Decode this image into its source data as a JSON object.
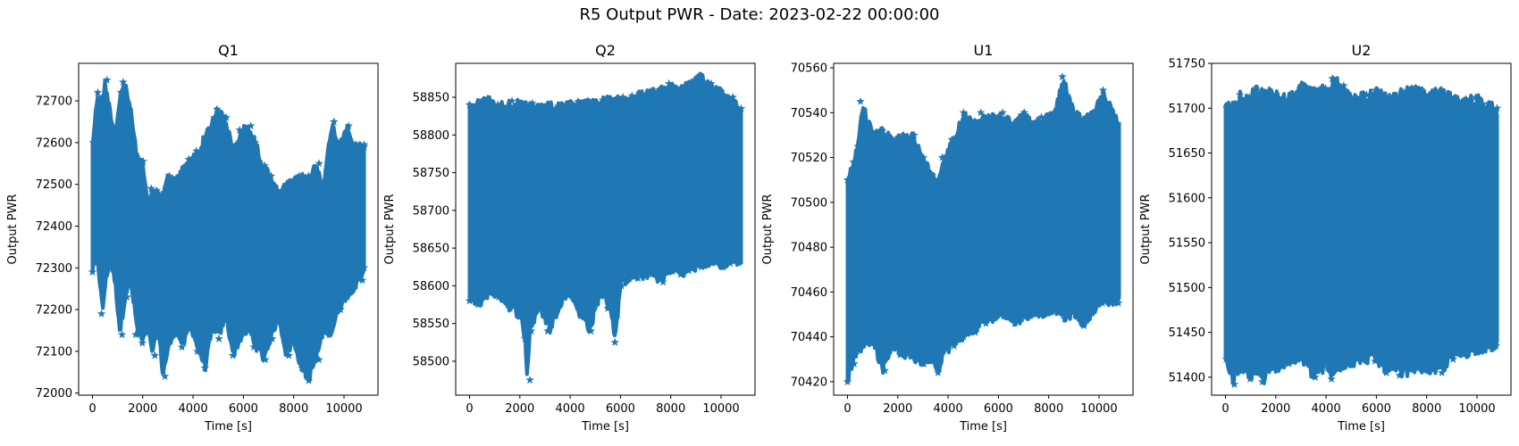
{
  "figure": {
    "title": "R5 Output PWR - Date: 2023-02-22 00:00:00"
  },
  "chart_data": [
    {
      "type": "scatter",
      "title": "Q1",
      "xlabel": "Time [s]",
      "ylabel": "Output PWR",
      "marker": "star",
      "color": "#1f77b4",
      "xlim": [
        -550,
        11350
      ],
      "ylim": [
        71995,
        72790
      ],
      "xticks": [
        0,
        2000,
        4000,
        6000,
        8000,
        10000
      ],
      "yticks": [
        72000,
        72100,
        72200,
        72300,
        72400,
        72500,
        72600,
        72700
      ],
      "x_range": [
        0,
        10800
      ],
      "envelope": {
        "x": [
          0,
          200,
          400,
          500,
          700,
          900,
          1100,
          1300,
          1500,
          1800,
          2000,
          2200,
          2400,
          2600,
          2800,
          3000,
          3300,
          3600,
          3900,
          4200,
          4500,
          4800,
          5000,
          5300,
          5600,
          5900,
          6200,
          6500,
          6800,
          7100,
          7400,
          7700,
          8000,
          8300,
          8600,
          8900,
          9200,
          9500,
          9800,
          10100,
          10400,
          10700,
          10800
        ],
        "upper": [
          72600,
          72720,
          72700,
          72750,
          72680,
          72620,
          72720,
          72745,
          72690,
          72560,
          72555,
          72450,
          72490,
          72485,
          72480,
          72520,
          72510,
          72540,
          72560,
          72580,
          72620,
          72660,
          72680,
          72660,
          72580,
          72630,
          72640,
          72600,
          72545,
          72520,
          72480,
          72500,
          72510,
          72520,
          72520,
          72550,
          72500,
          72650,
          72600,
          72640,
          72595,
          72595,
          72590
        ],
        "lower": [
          72290,
          72320,
          72190,
          72250,
          72320,
          72260,
          72140,
          72230,
          72270,
          72140,
          72120,
          72150,
          72090,
          72160,
          72040,
          72100,
          72150,
          72110,
          72160,
          72100,
          72060,
          72160,
          72130,
          72180,
          72090,
          72130,
          72150,
          72110,
          72080,
          72130,
          72180,
          72090,
          72120,
          72060,
          72030,
          72080,
          72150,
          72140,
          72200,
          72230,
          72250,
          72270,
          72300
        ]
      }
    },
    {
      "type": "scatter",
      "title": "Q2",
      "xlabel": "Time [s]",
      "ylabel": "Output PWR",
      "marker": "star",
      "color": "#1f77b4",
      "xlim": [
        -550,
        11350
      ],
      "ylim": [
        58455,
        58895
      ],
      "xticks": [
        0,
        2000,
        4000,
        6000,
        8000,
        10000
      ],
      "yticks": [
        58500,
        58550,
        58600,
        58650,
        58700,
        58750,
        58800,
        58850
      ],
      "x_range": [
        0,
        10800
      ],
      "envelope": {
        "x": [
          0,
          400,
          800,
          1200,
          1600,
          2000,
          2200,
          2300,
          2400,
          2800,
          3200,
          3600,
          4000,
          4400,
          4800,
          5200,
          5600,
          5800,
          6000,
          6400,
          6800,
          7200,
          7600,
          8000,
          8400,
          8800,
          9200,
          9600,
          10000,
          10400,
          10800
        ],
        "upper": [
          58840,
          58845,
          58848,
          58840,
          58845,
          58842,
          58840,
          58838,
          58842,
          58836,
          58840,
          58838,
          58842,
          58844,
          58845,
          58846,
          58848,
          58845,
          58850,
          58852,
          58855,
          58858,
          58860,
          58868,
          58862,
          58870,
          58878,
          58868,
          58860,
          58850,
          58835
        ],
        "lower": [
          58580,
          58575,
          58590,
          58585,
          58570,
          58560,
          58530,
          58475,
          58540,
          58570,
          58540,
          58575,
          58590,
          58560,
          58540,
          58590,
          58570,
          58525,
          58600,
          58610,
          58610,
          58615,
          58605,
          58620,
          58615,
          58620,
          58625,
          58630,
          58625,
          58630,
          58630
        ]
      }
    },
    {
      "type": "scatter",
      "title": "U1",
      "xlabel": "Time [s]",
      "ylabel": "Output PWR",
      "marker": "star",
      "color": "#1f77b4",
      "xlim": [
        -550,
        11350
      ],
      "ylim": [
        70414,
        70562
      ],
      "xticks": [
        0,
        2000,
        4000,
        6000,
        8000,
        10000
      ],
      "yticks": [
        70420,
        70440,
        70460,
        70480,
        70500,
        70520,
        70540,
        70560
      ],
      "x_range": [
        0,
        10800
      ],
      "envelope": {
        "x": [
          0,
          200,
          400,
          600,
          1000,
          1400,
          1800,
          2200,
          2600,
          3000,
          3400,
          3600,
          3800,
          4200,
          4600,
          5000,
          5400,
          5800,
          6200,
          6600,
          7000,
          7400,
          7800,
          8200,
          8600,
          9000,
          9400,
          9800,
          10200,
          10600,
          10800
        ],
        "upper": [
          70510,
          70518,
          70525,
          70545,
          70530,
          70532,
          70528,
          70530,
          70530,
          70520,
          70512,
          70510,
          70520,
          70528,
          70540,
          70535,
          70540,
          70538,
          70540,
          70535,
          70540,
          70535,
          70538,
          70540,
          70556,
          70540,
          70538,
          70540,
          70550,
          70540,
          70535
        ],
        "lower": [
          70420,
          70428,
          70432,
          70436,
          70438,
          70425,
          70436,
          70432,
          70430,
          70428,
          70430,
          70424,
          70432,
          70436,
          70440,
          70442,
          70446,
          70448,
          70450,
          70446,
          70448,
          70450,
          70450,
          70452,
          70448,
          70450,
          70445,
          70452,
          70455,
          70455,
          70455
        ]
      }
    },
    {
      "type": "scatter",
      "title": "U2",
      "xlabel": "Time [s]",
      "ylabel": "Output PWR",
      "marker": "star",
      "color": "#1f77b4",
      "xlim": [
        -550,
        11350
      ],
      "ylim": [
        51380,
        51750
      ],
      "xticks": [
        0,
        2000,
        4000,
        6000,
        8000,
        10000
      ],
      "yticks": [
        51400,
        51450,
        51500,
        51550,
        51600,
        51650,
        51700,
        51750
      ],
      "x_range": [
        0,
        10800
      ],
      "envelope": {
        "x": [
          0,
          300,
          600,
          900,
          1200,
          1500,
          2000,
          2500,
          3000,
          3500,
          4000,
          4300,
          4600,
          5000,
          5500,
          6000,
          6500,
          7000,
          7500,
          8000,
          8500,
          9000,
          9500,
          10000,
          10500,
          10800
        ],
        "upper": [
          51700,
          51705,
          51715,
          51712,
          51722,
          51720,
          51715,
          51712,
          51725,
          51718,
          51722,
          51733,
          51725,
          51712,
          51715,
          51720,
          51710,
          51718,
          51722,
          51715,
          51720,
          51712,
          51710,
          51712,
          51705,
          51700
        ],
        "lower": [
          51420,
          51392,
          51410,
          51398,
          51405,
          51395,
          51410,
          51415,
          51420,
          51400,
          51410,
          51398,
          51412,
          51415,
          51420,
          51418,
          51405,
          51402,
          51410,
          51408,
          51405,
          51420,
          51425,
          51430,
          51432,
          51435
        ]
      }
    }
  ]
}
